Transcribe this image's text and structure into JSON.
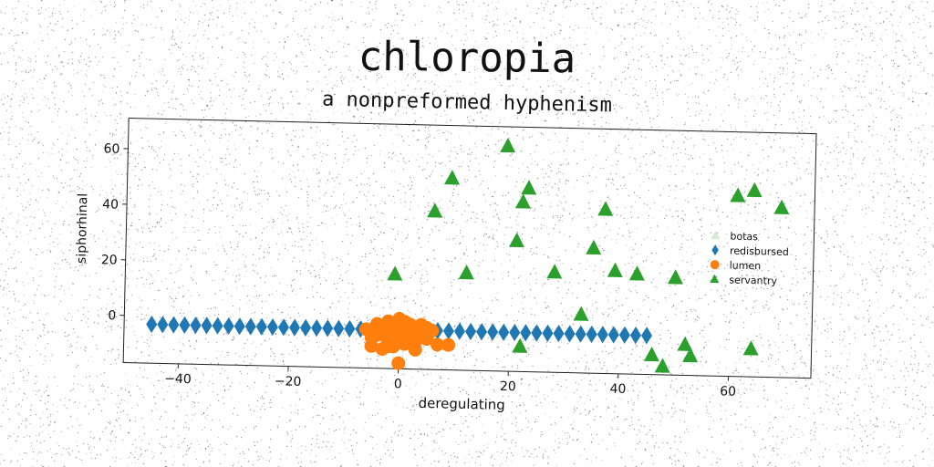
{
  "chart_data": {
    "type": "scatter",
    "title": "chloropia",
    "subtitle": "a nonpreformed hyphenism",
    "xlabel": "deregulating",
    "ylabel": "siphorhinal",
    "xlim": [
      -50,
      75
    ],
    "ylim": [
      -17,
      71
    ],
    "xticks": [
      -40,
      -20,
      0,
      20,
      40,
      60
    ],
    "yticks": [
      0,
      20,
      40,
      60
    ],
    "legend_position": "right",
    "series": [
      {
        "name": "botas",
        "marker": "triangle",
        "color": "#d4ecd4",
        "points": []
      },
      {
        "name": "redisbursed",
        "marker": "diamond",
        "color": "#1f77b4",
        "points": [
          [
            -45,
            -3
          ],
          [
            -43,
            -3
          ],
          [
            -41,
            -3
          ],
          [
            -39,
            -3
          ],
          [
            -37,
            -3
          ],
          [
            -35,
            -3
          ],
          [
            -33,
            -3
          ],
          [
            -31,
            -3
          ],
          [
            -29,
            -3
          ],
          [
            -27,
            -3
          ],
          [
            -25,
            -3
          ],
          [
            -23,
            -3
          ],
          [
            -21,
            -3
          ],
          [
            -19,
            -3
          ],
          [
            -17,
            -3
          ],
          [
            -15,
            -3
          ],
          [
            -13,
            -3
          ],
          [
            -11,
            -3
          ],
          [
            -9,
            -3
          ],
          [
            -7,
            -3
          ],
          [
            -5,
            -3
          ],
          [
            -3,
            -3
          ],
          [
            -1,
            -3
          ],
          [
            1,
            -3
          ],
          [
            3,
            -3
          ],
          [
            5,
            -3
          ],
          [
            7,
            -3
          ],
          [
            9,
            -3
          ],
          [
            11,
            -3
          ],
          [
            13,
            -3
          ],
          [
            15,
            -3
          ],
          [
            17,
            -3
          ],
          [
            19,
            -3
          ],
          [
            21,
            -3
          ],
          [
            23,
            -3
          ],
          [
            25,
            -3
          ],
          [
            27,
            -3
          ],
          [
            29,
            -3
          ],
          [
            31,
            -3
          ],
          [
            33,
            -3
          ],
          [
            35,
            -3
          ],
          [
            37,
            -3
          ],
          [
            39,
            -3
          ],
          [
            41,
            -3
          ],
          [
            43,
            -3
          ],
          [
            45,
            -3
          ]
        ]
      },
      {
        "name": "lumen",
        "marker": "circle",
        "color": "#ff7f0e",
        "points": [
          [
            -6,
            -3
          ],
          [
            -5,
            -6
          ],
          [
            -5,
            -9
          ],
          [
            -4,
            -1
          ],
          [
            -4,
            -5
          ],
          [
            -3,
            -10
          ],
          [
            -3,
            -3
          ],
          [
            -2,
            0
          ],
          [
            -2,
            -7
          ],
          [
            -1,
            -4
          ],
          [
            -1,
            -1
          ],
          [
            -1,
            -9
          ],
          [
            0,
            1
          ],
          [
            0,
            -4
          ],
          [
            0,
            -6
          ],
          [
            0,
            -2
          ],
          [
            1,
            -3
          ],
          [
            1,
            -8
          ],
          [
            1,
            0
          ],
          [
            2,
            -5
          ],
          [
            2,
            -1
          ],
          [
            3,
            -3
          ],
          [
            3,
            -7
          ],
          [
            3,
            -10
          ],
          [
            4,
            -1
          ],
          [
            4,
            -4
          ],
          [
            5,
            -2
          ],
          [
            5,
            -6
          ],
          [
            6,
            -3
          ],
          [
            -2,
            -9
          ],
          [
            7,
            -8
          ],
          [
            9,
            -8
          ],
          [
            0,
            -15
          ]
        ]
      },
      {
        "name": "servantry",
        "marker": "triangle",
        "color": "#2ca02c",
        "points": [
          [
            -1,
            17
          ],
          [
            6,
            40
          ],
          [
            9,
            52
          ],
          [
            12,
            18
          ],
          [
            19,
            64
          ],
          [
            21,
            30
          ],
          [
            22,
            44
          ],
          [
            23,
            49
          ],
          [
            22,
            -8
          ],
          [
            28,
            19
          ],
          [
            33,
            4
          ],
          [
            35,
            28
          ],
          [
            37,
            42
          ],
          [
            39,
            20
          ],
          [
            43,
            19
          ],
          [
            46,
            -10
          ],
          [
            48,
            -14
          ],
          [
            50,
            18
          ],
          [
            52,
            -6
          ],
          [
            53,
            -10
          ],
          [
            61,
            48
          ],
          [
            64,
            50
          ],
          [
            64,
            -7
          ],
          [
            69,
            44
          ]
        ]
      }
    ]
  }
}
